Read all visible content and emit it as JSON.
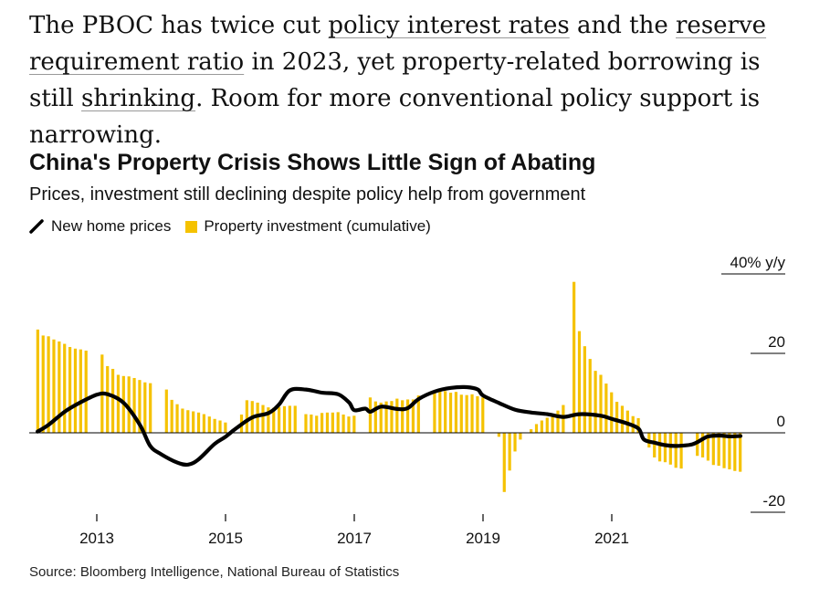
{
  "intro": {
    "seg1": "The PBOC has twice cut ",
    "link1": "policy interest rates",
    "seg2": " and the ",
    "link2": "reserve requirement ratio",
    "seg3": " in 2023, yet property-related borrowing is still ",
    "link3": "shrinking",
    "seg4": ". Room for more conventional policy support is narrowing."
  },
  "chart_data": {
    "type": "bar",
    "title": "China's Property Crisis Shows Little Sign of Abating",
    "subtitle": "Prices, investment still declining despite policy help from government",
    "legend": [
      {
        "label": "New home prices",
        "kind": "line",
        "color": "#000000"
      },
      {
        "label": "Property investment (cumulative)",
        "kind": "bar",
        "color": "#f5c200"
      }
    ],
    "ylabel": "40% y/y",
    "ylim": [
      -23,
      40
    ],
    "y_ticks": [
      20,
      0,
      -20
    ],
    "y_tick_labels": [
      "20",
      "0",
      "-20"
    ],
    "x_tick_labels": [
      "2013",
      "2015",
      "2017",
      "2019",
      "2021"
    ],
    "x_ticks": [
      2013,
      2015,
      2017,
      2019,
      2021
    ],
    "xlim": [
      2012.0,
      2023.0
    ],
    "series": [
      {
        "name": "Property investment (cumulative)",
        "kind": "bar",
        "start": 2012.083,
        "step": 0.0833,
        "values": [
          26.0,
          24.5,
          24.3,
          23.5,
          23.0,
          22.4,
          21.6,
          21.2,
          21.0,
          20.7,
          null,
          null,
          19.7,
          16.8,
          16.1,
          14.6,
          14.3,
          14.2,
          13.8,
          13.3,
          12.7,
          12.5,
          null,
          null,
          10.9,
          8.3,
          7.2,
          6.1,
          5.7,
          5.4,
          5.1,
          4.7,
          4.1,
          3.5,
          3.1,
          2.6,
          null,
          null,
          4.6,
          8.2,
          8.0,
          7.6,
          7.0,
          6.4,
          6.3,
          6.5,
          6.7,
          6.8,
          6.8,
          null,
          4.7,
          4.6,
          4.3,
          5.0,
          5.1,
          5.1,
          5.2,
          4.6,
          4.1,
          4.3,
          null,
          null,
          8.9,
          7.9,
          7.6,
          7.9,
          8.0,
          8.6,
          8.2,
          8.4,
          8.4,
          9.4,
          null,
          null,
          10.4,
          10.4,
          10.5,
          10.1,
          10.3,
          9.6,
          9.5,
          9.7,
          9.2,
          8.9,
          null,
          null,
          -1.0,
          -14.9,
          -9.5,
          -4.7,
          -1.7,
          0.0,
          0.9,
          2.2,
          3.1,
          3.8,
          4.2,
          5.6,
          7.0,
          null,
          38.0,
          25.6,
          21.8,
          18.6,
          15.6,
          14.6,
          12.4,
          10.2,
          7.8,
          6.8,
          5.6,
          4.2,
          3.7,
          null,
          -3.7,
          -6.2,
          -7.2,
          -7.4,
          -8.0,
          -8.8,
          -9.0,
          null,
          null,
          -5.8,
          -6.2,
          -7.0,
          -8.1,
          -8.3,
          -8.9,
          -9.2,
          -9.6,
          -9.8,
          null
        ]
      },
      {
        "name": "New home prices",
        "kind": "line",
        "points": [
          [
            2012.08,
            0.3
          ],
          [
            2012.25,
            2.0
          ],
          [
            2012.5,
            5.3
          ],
          [
            2012.75,
            7.7
          ],
          [
            2013.0,
            9.6
          ],
          [
            2013.17,
            9.7
          ],
          [
            2013.42,
            7.5
          ],
          [
            2013.67,
            2.0
          ],
          [
            2013.83,
            -3.3
          ],
          [
            2014.0,
            -5.4
          ],
          [
            2014.25,
            -7.5
          ],
          [
            2014.42,
            -8.0
          ],
          [
            2014.58,
            -6.7
          ],
          [
            2014.83,
            -2.8
          ],
          [
            2015.0,
            -1.0
          ],
          [
            2015.17,
            1.2
          ],
          [
            2015.42,
            3.9
          ],
          [
            2015.67,
            5.0
          ],
          [
            2015.83,
            7.1
          ],
          [
            2016.0,
            10.7
          ],
          [
            2016.25,
            10.9
          ],
          [
            2016.5,
            10.1
          ],
          [
            2016.75,
            9.7
          ],
          [
            2016.92,
            7.6
          ],
          [
            2017.0,
            5.7
          ],
          [
            2017.17,
            6.1
          ],
          [
            2017.25,
            5.3
          ],
          [
            2017.42,
            6.6
          ],
          [
            2017.67,
            6.0
          ],
          [
            2017.83,
            6.2
          ],
          [
            2018.0,
            8.5
          ],
          [
            2018.25,
            10.4
          ],
          [
            2018.5,
            11.3
          ],
          [
            2018.75,
            11.5
          ],
          [
            2018.92,
            10.9
          ],
          [
            2019.0,
            9.4
          ],
          [
            2019.25,
            7.5
          ],
          [
            2019.5,
            5.8
          ],
          [
            2019.75,
            5.1
          ],
          [
            2020.0,
            4.7
          ],
          [
            2020.25,
            4.0
          ],
          [
            2020.5,
            4.7
          ],
          [
            2020.83,
            4.3
          ],
          [
            2021.0,
            3.5
          ],
          [
            2021.25,
            2.3
          ],
          [
            2021.42,
            1.0
          ],
          [
            2021.5,
            -1.7
          ],
          [
            2021.67,
            -2.5
          ],
          [
            2021.83,
            -3.1
          ],
          [
            2022.0,
            -3.3
          ],
          [
            2022.25,
            -2.9
          ],
          [
            2022.42,
            -1.5
          ],
          [
            2022.5,
            -0.9
          ],
          [
            2022.67,
            -0.7
          ],
          [
            2022.83,
            -0.9
          ],
          [
            2023.0,
            -0.8
          ]
        ]
      }
    ],
    "grid": false,
    "legend_position": "top-left"
  },
  "source": "Source: Bloomberg Intelligence, National Bureau of Statistics"
}
